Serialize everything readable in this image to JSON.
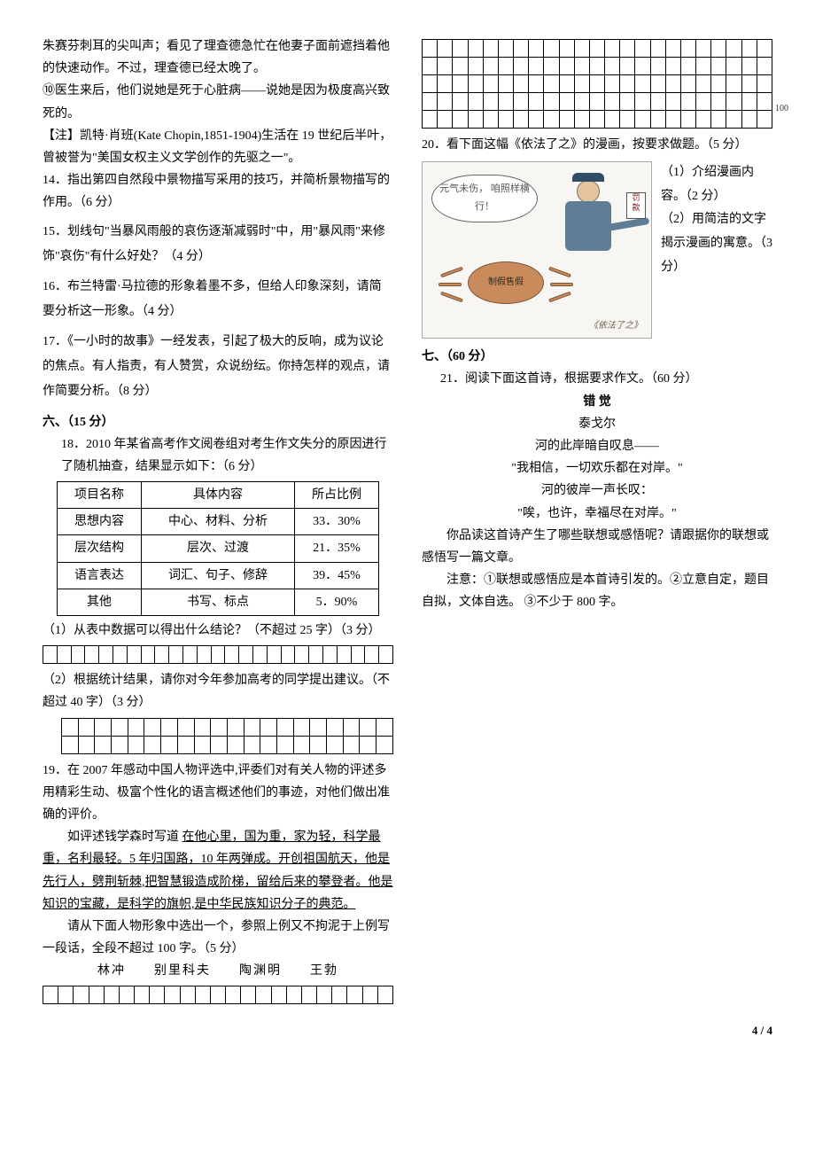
{
  "left": {
    "p1": "朱赛芬刺耳的尖叫声；看见了理查德急忙在他妻子面前遮挡着他的快速动作。不过，理查德已经太晚了。",
    "p2": "⑩医生来后，他们说她是死于心脏病——说她是因为极度高兴致死的。",
    "note": "【注】凯特·肖班(Kate Chopin,1851-1904)生活在 19 世纪后半叶，曾被誉为\"美国女权主义文学创作的先驱之一\"。",
    "q14": "14．指出第四自然段中景物描写采用的技巧，并简析景物描写的作用。（6 分）",
    "q15": "15．划线句\"当暴风雨般的哀伤逐渐减弱时\"中，用\"暴风雨\"来修饰\"哀伤\"有什么好处？（4 分）",
    "q16": "16．布兰特雷·马拉德的形象着墨不多，但给人印象深刻，请简要分析这一形象。（4 分）",
    "q17": "17．《一小时的故事》一经发表，引起了极大的反响，成为议论的焦点。有人指责，有人赞赏，众说纷纭。你持怎样的观点，请作简要分析。（8 分）",
    "sec6": "六、（15 分）",
    "q18_intro": "18．2010 年某省高考作文阅卷组对考生作文失分的原因进行了随机抽查，结果显示如下：（6 分）",
    "table18": {
      "headers": [
        "项目名称",
        "具体内容",
        "所占比例"
      ],
      "rows": [
        [
          "思想内容",
          "中心、材料、分析",
          "33．30%"
        ],
        [
          "层次结构",
          "层次、过渡",
          "21．35%"
        ],
        [
          "语言表达",
          "词汇、句子、修辞",
          "39．45%"
        ],
        [
          "其他",
          "书写、标点",
          "5．90%"
        ]
      ],
      "col_align": [
        "center",
        "center",
        "center"
      ]
    },
    "q18_1": "（1）从表中数据可以得出什么结论？（不超过 25 字）（3 分）",
    "q18_2": "（2）根据统计结果，请你对今年参加高考的同学提出建议。（不超过 40 字）（3 分）",
    "grid18_1": {
      "rows": 1,
      "cols": 25
    },
    "grid18_2": {
      "rows": 2,
      "cols": 20
    },
    "q19_p1": "19．在 2007 年感动中国人物评选中,评委们对有关人物的评述多用精彩生动、极富个性化的语言概述他们的事迹，对他们做出准确的评价。",
    "q19_p2_pre": "如评述钱学森时写道 ",
    "q19_p2_u": "在他心里，国为重，家为轻，科学最重，名利最轻。5 年归国路，10 年两弹成。开创祖国航天，他是先行人，劈荆斩棘,把智慧锻造成阶梯，留给后来的攀登者。他是知识的宝藏，是科学的旗帜,是中华民族知识分子的典范。",
    "q19_p3": "请从下面人物形象中选出一个，参照上例又不拘泥于上例写一段话，全段不超过 100 字。（5 分）",
    "q19_names": "林冲　　别里科夫　　陶渊明　　王勃",
    "grid19": {
      "rows": 1,
      "cols": 23
    }
  },
  "right": {
    "grid_top": {
      "rows": 5,
      "cols": 23,
      "marker_row": 4,
      "marker_text": "100"
    },
    "q20_intro": "20．看下面这幅《依法了之》的漫画，按要求做题。（5 分）",
    "cartoon": {
      "bubble": "元气未伤，\n咱照样横行！",
      "ticket": "罚\n款",
      "crab_label": "制假售假",
      "caption": "《依法了之》"
    },
    "q20_side_1": "（1）介绍漫画内容。（2 分）",
    "q20_side_2": "（2）用简洁的文字揭示漫画的寓意。（3 分）",
    "sec7": "七、（60 分）",
    "q21_intro": "21．阅读下面这首诗，根据要求作文。（60 分）",
    "poem": {
      "title": "错 觉",
      "author": "泰戈尔",
      "lines": [
        "河的此岸暗自叹息——",
        "\"我相信，一切欢乐都在对岸。\"",
        "河的彼岸一声长叹：",
        "\"唉，也许，幸福尽在对岸。\""
      ]
    },
    "q21_p1": "你品读这首诗产生了哪些联想或感悟呢？请跟据你的联想或感悟写一篇文章。",
    "q21_p2": "注意：①联想或感悟应是本首诗引发的。②立意自定，题目自拟，文体自选。 ③不少于 800 字。"
  },
  "footer": "4 / 4"
}
